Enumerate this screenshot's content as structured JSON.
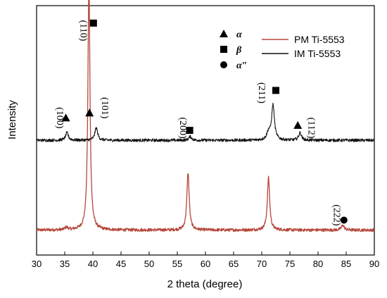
{
  "chart_data": {
    "type": "line",
    "title": "",
    "xlabel": "2 theta (degree)",
    "ylabel": "Intensity",
    "xlim": [
      30,
      90
    ],
    "xticks": [
      30,
      35,
      40,
      45,
      50,
      55,
      60,
      65,
      70,
      75,
      80,
      85,
      90
    ],
    "grid": false,
    "legend_position": "top-right",
    "phases": [
      {
        "symbol": "triangle",
        "name": "α"
      },
      {
        "symbol": "square",
        "name": "β"
      },
      {
        "symbol": "circle",
        "name": "α″"
      }
    ],
    "series": [
      {
        "name": "PM Ti-5553",
        "color": "#b5473a",
        "baseline": 0.1,
        "noise": 0.006,
        "peaks": [
          {
            "x": 35.3,
            "h": 0.01,
            "w": 0.3
          },
          {
            "x": 39.3,
            "h": 1.0,
            "w": 0.22
          },
          {
            "x": 56.9,
            "h": 0.23,
            "w": 0.25
          },
          {
            "x": 71.2,
            "h": 0.21,
            "w": 0.25
          },
          {
            "x": 84.4,
            "h": 0.02,
            "w": 0.3
          }
        ]
      },
      {
        "name": "IM  Ti-5553",
        "color": "#111111",
        "baseline": 0.46,
        "noise": 0.006,
        "peaks": [
          {
            "x": 35.4,
            "h": 0.03,
            "w": 0.3
          },
          {
            "x": 40.6,
            "h": 0.05,
            "w": 0.3
          },
          {
            "x": 57.3,
            "h": 0.015,
            "w": 0.3
          },
          {
            "x": 71.2,
            "h": 0.03,
            "w": 0.35
          },
          {
            "x": 72.0,
            "h": 0.14,
            "w": 0.3
          },
          {
            "x": 76.8,
            "h": 0.03,
            "w": 0.3
          }
        ]
      }
    ],
    "annotations": [
      {
        "label": "(110)",
        "x": 37.8,
        "y": 0.9,
        "marker": "square",
        "mx": 40.1,
        "my": 0.93
      },
      {
        "label": "(100)",
        "x": 33.6,
        "y": 0.55,
        "marker": "triangle",
        "mx": 35.2,
        "my": 0.55
      },
      {
        "label": "(101)",
        "x": 41.6,
        "y": 0.59,
        "marker": "triangle",
        "mx": 39.4,
        "my": 0.57
      },
      {
        "label": "(200)",
        "x": 55.5,
        "y": 0.51,
        "marker": "square",
        "mx": 57.2,
        "my": 0.5
      },
      {
        "label": "(211)",
        "x": 69.5,
        "y": 0.65,
        "marker": "square",
        "mx": 72.5,
        "my": 0.66
      },
      {
        "label": "(112)",
        "x": 78.3,
        "y": 0.51,
        "marker": "triangle",
        "mx": 76.4,
        "my": 0.52
      },
      {
        "label": "(222)",
        "x": 82.8,
        "y": 0.16,
        "marker": "circle",
        "mx": 84.6,
        "my": 0.14
      }
    ]
  }
}
